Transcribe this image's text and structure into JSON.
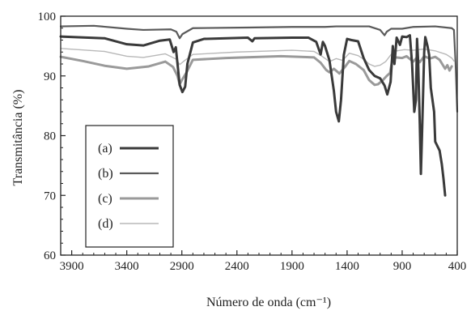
{
  "chart_data": {
    "type": "line",
    "xlabel": "Número de onda (cm⁻¹)",
    "ylabel": "Transmitância (%)",
    "xlim": [
      4000,
      400
    ],
    "ylim": [
      60,
      100
    ],
    "x_ticks": [
      3900,
      3400,
      2900,
      2400,
      1900,
      1400,
      900,
      400
    ],
    "y_ticks": [
      60,
      70,
      80,
      90,
      100
    ],
    "grid": false,
    "legend": {
      "placement": "lower-left"
    },
    "series": [
      {
        "name": "(a)",
        "color": "#3a3a3a",
        "style": "thick",
        "points": [
          [
            4000,
            96.6
          ],
          [
            3600,
            96.3
          ],
          [
            3400,
            95.3
          ],
          [
            3250,
            95.1
          ],
          [
            3100,
            95.9
          ],
          [
            3010,
            96.1
          ],
          [
            2975,
            94.0
          ],
          [
            2955,
            94.8
          ],
          [
            2920,
            88.5
          ],
          [
            2895,
            87.3
          ],
          [
            2870,
            88.2
          ],
          [
            2850,
            92.0
          ],
          [
            2800,
            95.6
          ],
          [
            2700,
            96.2
          ],
          [
            2300,
            96.4
          ],
          [
            2260,
            95.8
          ],
          [
            2240,
            96.3
          ],
          [
            1900,
            96.4
          ],
          [
            1750,
            96.4
          ],
          [
            1680,
            95.7
          ],
          [
            1640,
            93.6
          ],
          [
            1620,
            95.7
          ],
          [
            1600,
            95.0
          ],
          [
            1560,
            92.6
          ],
          [
            1520,
            87.5
          ],
          [
            1500,
            84.0
          ],
          [
            1475,
            82.4
          ],
          [
            1455,
            86.0
          ],
          [
            1430,
            93.5
          ],
          [
            1400,
            96.2
          ],
          [
            1360,
            96.0
          ],
          [
            1300,
            95.8
          ],
          [
            1250,
            93.0
          ],
          [
            1200,
            91.0
          ],
          [
            1150,
            90.0
          ],
          [
            1100,
            89.6
          ],
          [
            1060,
            88.4
          ],
          [
            1035,
            86.9
          ],
          [
            1005,
            89.0
          ],
          [
            985,
            95.0
          ],
          [
            970,
            92.0
          ],
          [
            950,
            96.4
          ],
          [
            920,
            95.2
          ],
          [
            900,
            96.6
          ],
          [
            860,
            96.5
          ],
          [
            830,
            96.8
          ],
          [
            810,
            92.0
          ],
          [
            790,
            84.0
          ],
          [
            775,
            86.0
          ],
          [
            765,
            96.2
          ],
          [
            755,
            92.5
          ],
          [
            740,
            82.0
          ],
          [
            730,
            73.6
          ],
          [
            720,
            80.0
          ],
          [
            700,
            94.0
          ],
          [
            690,
            96.5
          ],
          [
            670,
            95.0
          ],
          [
            655,
            93.5
          ],
          [
            640,
            88.0
          ],
          [
            625,
            86.0
          ],
          [
            610,
            84.0
          ],
          [
            600,
            79.0
          ],
          [
            560,
            77.5
          ],
          [
            540,
            75.2
          ],
          [
            525,
            72.8
          ],
          [
            510,
            70.0
          ]
        ]
      },
      {
        "name": "(b)",
        "color": "#5a5a5a",
        "style": "medium",
        "points": [
          [
            4000,
            98.3
          ],
          [
            3700,
            98.4
          ],
          [
            3400,
            97.9
          ],
          [
            3250,
            97.7
          ],
          [
            3000,
            97.8
          ],
          [
            2950,
            97.4
          ],
          [
            2920,
            96.3
          ],
          [
            2895,
            97.0
          ],
          [
            2800,
            98.0
          ],
          [
            2300,
            98.1
          ],
          [
            1900,
            98.2
          ],
          [
            1600,
            98.2
          ],
          [
            1500,
            98.3
          ],
          [
            1200,
            98.3
          ],
          [
            1100,
            97.7
          ],
          [
            1060,
            96.8
          ],
          [
            1040,
            97.4
          ],
          [
            1000,
            97.9
          ],
          [
            900,
            97.9
          ],
          [
            800,
            98.2
          ],
          [
            600,
            98.3
          ],
          [
            450,
            98.0
          ],
          [
            430,
            97.7
          ],
          [
            415,
            92.0
          ],
          [
            400,
            84.0
          ]
        ]
      },
      {
        "name": "(c)",
        "color": "#9a9a9a",
        "style": "thick",
        "points": [
          [
            4000,
            93.2
          ],
          [
            3800,
            92.5
          ],
          [
            3600,
            91.7
          ],
          [
            3400,
            91.2
          ],
          [
            3200,
            91.6
          ],
          [
            3050,
            92.4
          ],
          [
            2980,
            91.5
          ],
          [
            2940,
            90.0
          ],
          [
            2920,
            88.6
          ],
          [
            2900,
            89.3
          ],
          [
            2860,
            90.5
          ],
          [
            2800,
            92.7
          ],
          [
            2500,
            93.0
          ],
          [
            2000,
            93.3
          ],
          [
            1700,
            93.1
          ],
          [
            1640,
            92.2
          ],
          [
            1590,
            91.0
          ],
          [
            1560,
            90.6
          ],
          [
            1520,
            91.2
          ],
          [
            1470,
            90.4
          ],
          [
            1420,
            91.5
          ],
          [
            1380,
            92.5
          ],
          [
            1320,
            92.0
          ],
          [
            1250,
            91.0
          ],
          [
            1200,
            89.3
          ],
          [
            1150,
            88.5
          ],
          [
            1120,
            88.6
          ],
          [
            1080,
            89.2
          ],
          [
            1040,
            90.0
          ],
          [
            1010,
            90.5
          ],
          [
            990,
            92.7
          ],
          [
            960,
            93.1
          ],
          [
            900,
            93.0
          ],
          [
            860,
            93.3
          ],
          [
            800,
            92.4
          ],
          [
            770,
            93.0
          ],
          [
            740,
            92.3
          ],
          [
            700,
            93.3
          ],
          [
            650,
            92.9
          ],
          [
            600,
            93.2
          ],
          [
            560,
            92.7
          ],
          [
            510,
            91.2
          ],
          [
            490,
            91.8
          ],
          [
            470,
            90.9
          ],
          [
            450,
            91.6
          ]
        ]
      },
      {
        "name": "(d)",
        "color": "#b8b8b8",
        "style": "thin",
        "points": [
          [
            4000,
            94.6
          ],
          [
            3600,
            94.1
          ],
          [
            3400,
            93.3
          ],
          [
            3250,
            93.1
          ],
          [
            3050,
            93.7
          ],
          [
            2950,
            92.8
          ],
          [
            2920,
            91.9
          ],
          [
            2880,
            92.5
          ],
          [
            2800,
            93.6
          ],
          [
            2400,
            94.0
          ],
          [
            1900,
            94.3
          ],
          [
            1700,
            94.1
          ],
          [
            1620,
            93.2
          ],
          [
            1560,
            92.4
          ],
          [
            1500,
            92.9
          ],
          [
            1440,
            92.6
          ],
          [
            1380,
            93.8
          ],
          [
            1300,
            93.4
          ],
          [
            1250,
            92.8
          ],
          [
            1200,
            92.0
          ],
          [
            1150,
            91.6
          ],
          [
            1100,
            91.8
          ],
          [
            1050,
            92.4
          ],
          [
            1000,
            93.6
          ],
          [
            950,
            94.2
          ],
          [
            880,
            94.4
          ],
          [
            800,
            94.3
          ],
          [
            700,
            94.5
          ],
          [
            600,
            94.2
          ],
          [
            500,
            93.6
          ],
          [
            450,
            93.0
          ],
          [
            430,
            92.5
          ]
        ]
      }
    ]
  }
}
